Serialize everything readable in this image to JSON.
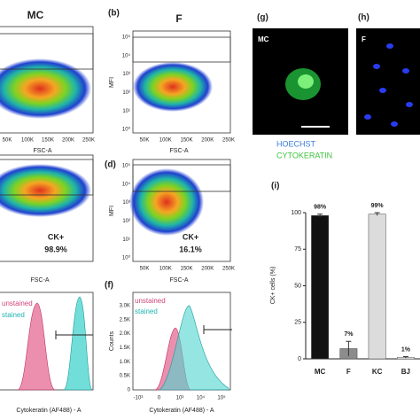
{
  "panels": {
    "a": {
      "title": "MC",
      "xticks": [
        "50K",
        "100K",
        "150K",
        "200K",
        "250K"
      ],
      "xlabel": "FSC-A"
    },
    "b": {
      "letter": "(b)",
      "title": "F",
      "xticks": [
        "50K",
        "100K",
        "150K",
        "200K",
        "250K"
      ],
      "xlabel": "FSC-A",
      "ylabel": "MFI",
      "yticks": [
        "10⁵",
        "10⁴",
        "10³",
        "10²",
        "10¹",
        "10⁰"
      ]
    },
    "c": {
      "gate_label": "CK+",
      "gate_value": "98.9%",
      "xlabel": "FSC-A"
    },
    "d": {
      "letter": "(d)",
      "gate_label": "CK+",
      "gate_value": "16.1%",
      "xticks": [
        "50K",
        "100K",
        "150K",
        "200K",
        "250K"
      ],
      "xlabel": "FSC-A",
      "ylabel": "MFI",
      "yticks": [
        "10⁵",
        "10⁴",
        "10³",
        "10²",
        "10¹",
        "10⁰"
      ]
    },
    "e": {
      "legend": [
        "unstained",
        "stained"
      ],
      "xlabel": "Cytokeratin (AF488) - A"
    },
    "f": {
      "letter": "(f)",
      "legend": [
        "unstained",
        "stained"
      ],
      "ylabel": "Counts",
      "yticks": [
        "3.0K",
        "2.5K",
        "2.0K",
        "1.5K",
        "1.0K",
        "0.5K",
        "0"
      ],
      "xticks": [
        "-10³",
        "0",
        "10³",
        "10⁴",
        "10⁵"
      ],
      "xlabel": "Cytokeratin (AF488) - A"
    },
    "g": {
      "letter": "(g)",
      "label": "MC"
    },
    "h": {
      "letter": "(h)",
      "label": "F"
    },
    "stain_legend": [
      "HOECHST",
      "CYTOKERATIN"
    ]
  },
  "chart_data": {
    "type": "bar",
    "letter": "(i)",
    "ylabel": "CK+ cells (%)",
    "categories": [
      "MC",
      "F",
      "KC",
      "BJ"
    ],
    "values": [
      98,
      7,
      99,
      1
    ],
    "errors": [
      1,
      5,
      1,
      0.5
    ],
    "value_labels": [
      "98%",
      "7%",
      "99%",
      "1%"
    ],
    "colors": [
      "#111111",
      "#8c8c8c",
      "#dcdcdc",
      "#ffffff"
    ],
    "ylim": [
      0,
      100
    ],
    "yticks": [
      0,
      25,
      50,
      75,
      100
    ]
  }
}
